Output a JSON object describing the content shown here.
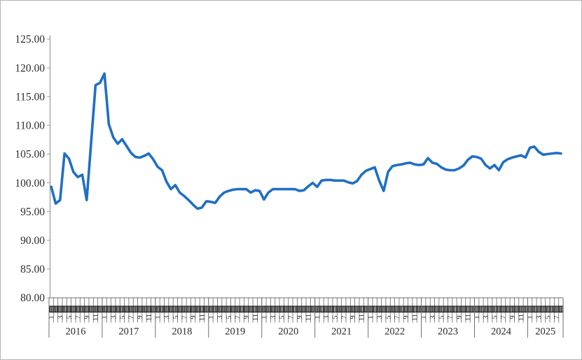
{
  "chart_data": {
    "type": "line",
    "title": "",
    "legend": "none",
    "grid": false,
    "y_axis": {
      "min": 80,
      "max": 125,
      "step": 5,
      "tick_labels": [
        "125.00",
        "120.00",
        "115.00",
        "110.00",
        "105.00",
        "100.00",
        "95.00",
        "90.00",
        "85.00",
        "80.00"
      ]
    },
    "x_axis": {
      "years": [
        {
          "label": "2016",
          "months": 12,
          "shown_month_labels": [
            "1",
            "3",
            "5",
            "7",
            "9",
            "11"
          ]
        },
        {
          "label": "2017",
          "months": 12,
          "shown_month_labels": [
            "1",
            "3",
            "5",
            "7",
            "9",
            "11"
          ]
        },
        {
          "label": "2018",
          "months": 12,
          "shown_month_labels": [
            "1",
            "3",
            "5",
            "7",
            "9",
            "11"
          ]
        },
        {
          "label": "2019",
          "months": 12,
          "shown_month_labels": [
            "1",
            "3",
            "5",
            "7",
            "9",
            "11"
          ]
        },
        {
          "label": "2020",
          "months": 12,
          "shown_month_labels": [
            "1",
            "3",
            "5",
            "7",
            "9",
            "11"
          ]
        },
        {
          "label": "2021",
          "months": 12,
          "shown_month_labels": [
            "1",
            "3",
            "5",
            "7",
            "9",
            "11"
          ]
        },
        {
          "label": "2022",
          "months": 12,
          "shown_month_labels": [
            "1",
            "3",
            "5",
            "7",
            "9",
            "11"
          ]
        },
        {
          "label": "2023",
          "months": 12,
          "shown_month_labels": [
            "1",
            "3",
            "5",
            "7",
            "9",
            "11"
          ]
        },
        {
          "label": "2024",
          "months": 12,
          "shown_month_labels": [
            "1",
            "3",
            "5",
            "7",
            "9",
            "11"
          ]
        },
        {
          "label": "2025",
          "months": 8,
          "shown_month_labels": [
            "1",
            "3",
            "5",
            "7"
          ]
        }
      ]
    },
    "series": [
      {
        "color": "#1F6FC5",
        "first_point": "2016-01",
        "last_point": "2025-08",
        "monthly_values": [
          99.3,
          96.4,
          97.0,
          105.1,
          104.2,
          101.9,
          101.0,
          101.4,
          97.0,
          107.0,
          117.0,
          117.4,
          119.0,
          110.2,
          107.9,
          106.8,
          107.6,
          106.4,
          105.2,
          104.5,
          104.4,
          104.7,
          105.1,
          104.1,
          102.8,
          102.2,
          100.2,
          98.9,
          99.6,
          98.3,
          97.7,
          97.0,
          96.2,
          95.5,
          95.7,
          96.8,
          96.7,
          96.5,
          97.6,
          98.3,
          98.6,
          98.8,
          98.9,
          98.9,
          98.9,
          98.3,
          98.7,
          98.6,
          97.1,
          98.3,
          98.9,
          98.9,
          98.9,
          98.9,
          98.9,
          98.9,
          98.6,
          98.7,
          99.4,
          100.0,
          99.3,
          100.4,
          100.5,
          100.5,
          100.4,
          100.4,
          100.4,
          100.1,
          99.9,
          100.3,
          101.4,
          102.1,
          102.4,
          102.7,
          100.4,
          98.6,
          101.9,
          102.9,
          103.1,
          103.2,
          103.4,
          103.5,
          103.2,
          103.1,
          103.2,
          104.3,
          103.5,
          103.3,
          102.7,
          102.3,
          102.2,
          102.2,
          102.5,
          103.0,
          104.0,
          104.6,
          104.5,
          104.2,
          103.1,
          102.5,
          103.1,
          102.2,
          103.6,
          104.1,
          104.4,
          104.6,
          104.8,
          104.4,
          106.1,
          106.3,
          105.4,
          104.9,
          105.0,
          105.1,
          105.2,
          105.1
        ]
      }
    ]
  },
  "colors": {
    "line": "#1F6FC5",
    "axis": "#6f6f6f",
    "axis_light": "#9a9a9a",
    "comb": "#0a0a0a",
    "text": "#2b2b2b",
    "background": "#ffffff",
    "border": "#b3b3b3"
  }
}
